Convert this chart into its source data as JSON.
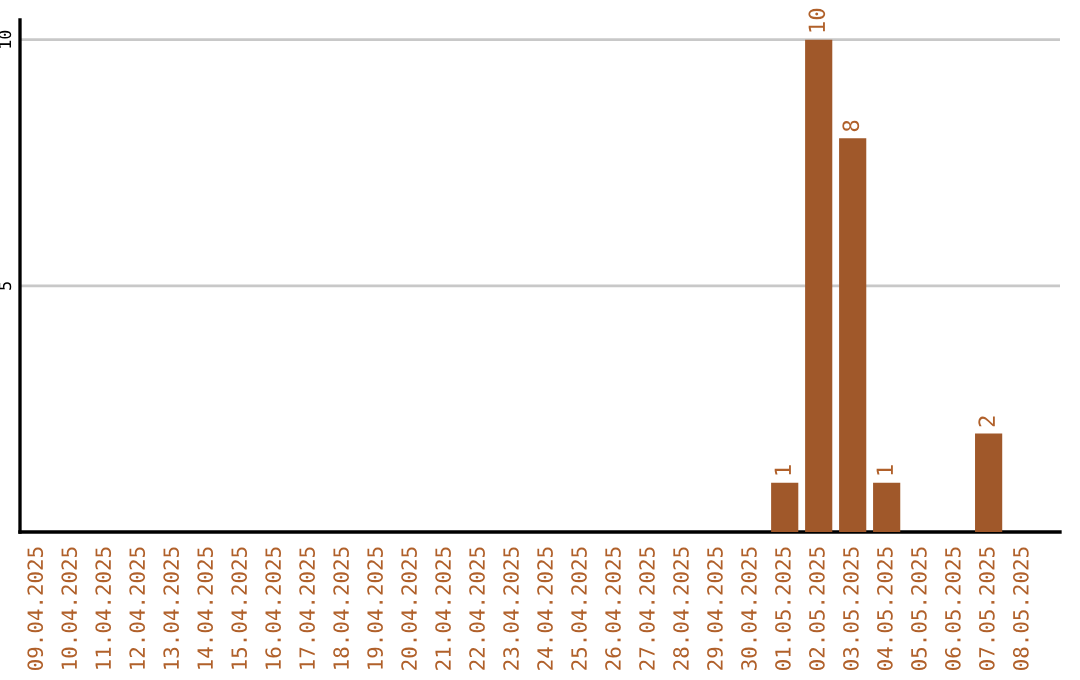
{
  "chart_data": {
    "type": "bar",
    "categories": [
      "09.04.2025",
      "10.04.2025",
      "11.04.2025",
      "12.04.2025",
      "13.04.2025",
      "14.04.2025",
      "15.04.2025",
      "16.04.2025",
      "17.04.2025",
      "18.04.2025",
      "19.04.2025",
      "20.04.2025",
      "21.04.2025",
      "22.04.2025",
      "23.04.2025",
      "24.04.2025",
      "25.04.2025",
      "26.04.2025",
      "27.04.2025",
      "28.04.2025",
      "29.04.2025",
      "30.04.2025",
      "01.05.2025",
      "02.05.2025",
      "03.05.2025",
      "04.05.2025",
      "05.05.2025",
      "06.05.2025",
      "07.05.2025",
      "08.05.2025"
    ],
    "values": [
      0,
      0,
      0,
      0,
      0,
      0,
      0,
      0,
      0,
      0,
      0,
      0,
      0,
      0,
      0,
      0,
      0,
      0,
      0,
      0,
      0,
      0,
      1,
      10,
      8,
      1,
      0,
      0,
      2,
      0
    ],
    "value_labels": [
      null,
      null,
      null,
      null,
      null,
      null,
      null,
      null,
      null,
      null,
      null,
      null,
      null,
      null,
      null,
      null,
      null,
      null,
      null,
      null,
      null,
      null,
      "1",
      "10",
      "8",
      "1",
      null,
      null,
      "2",
      null
    ],
    "color": "#a0582a",
    "ylim": [
      0,
      10.4
    ],
    "yticks": [
      5,
      10
    ],
    "grid": "y",
    "legend": false
  }
}
